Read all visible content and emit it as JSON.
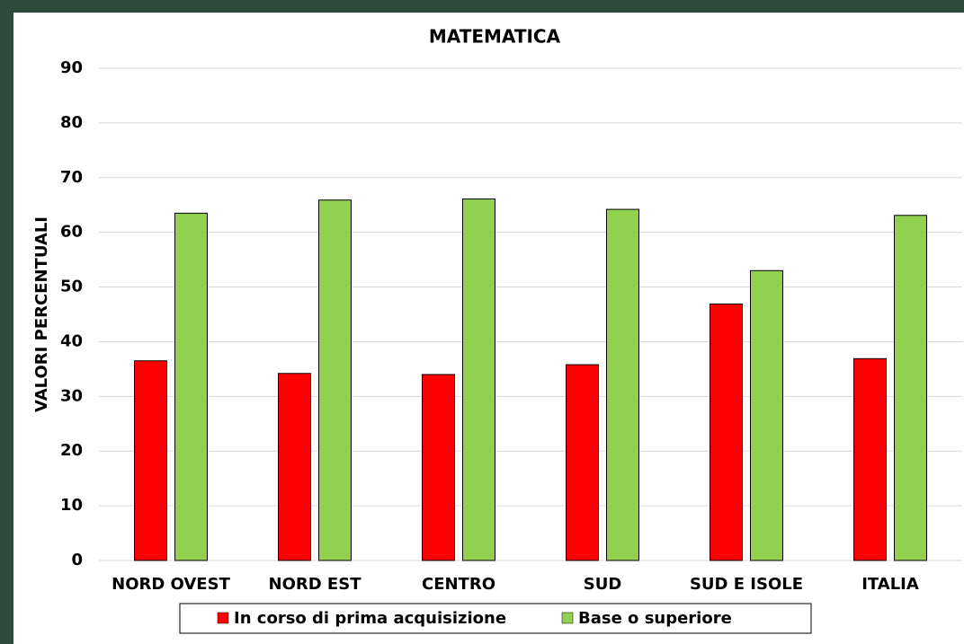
{
  "chart_data": {
    "type": "bar",
    "title": "MATEMATICA",
    "y_label": "VALORI PERCENTUALI",
    "categories": [
      "NORD OVEST",
      "NORD EST",
      "CENTRO",
      "SUD",
      "SUD E ISOLE",
      "ITALIA"
    ],
    "series": [
      {
        "name": "In corso di prima acquisizione",
        "color": "#ff0000",
        "values": [
          36.5,
          34.2,
          34,
          35.8,
          46.9,
          36.9
        ]
      },
      {
        "name": "Base o superiore",
        "color": "#92d050",
        "values": [
          63.5,
          65.9,
          66.1,
          64.2,
          53,
          63.1
        ]
      }
    ],
    "ylim": [
      0,
      90
    ],
    "yticks": [
      0,
      10,
      20,
      30,
      40,
      50,
      60,
      70,
      80,
      90
    ],
    "grid": true,
    "legend": "bottom"
  }
}
